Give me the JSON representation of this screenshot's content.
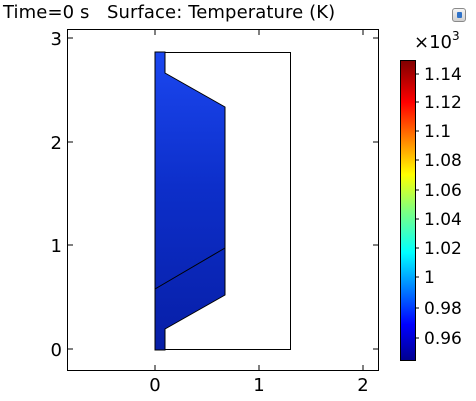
{
  "title": "Time=0 s   Surface: Temperature (K)",
  "plot": {
    "x_ticks": [
      "0",
      "1",
      "2"
    ],
    "y_ticks": [
      "0",
      "1",
      "2",
      "3"
    ]
  },
  "colorbar": {
    "exponent_base": "×10",
    "exponent_power": "3",
    "ticks": [
      "1.14",
      "1.12",
      "1.1",
      "1.08",
      "1.06",
      "1.04",
      "1.02",
      "1",
      "0.98",
      "0.96"
    ]
  },
  "toolbar": {
    "icon": "camera-icon"
  }
}
